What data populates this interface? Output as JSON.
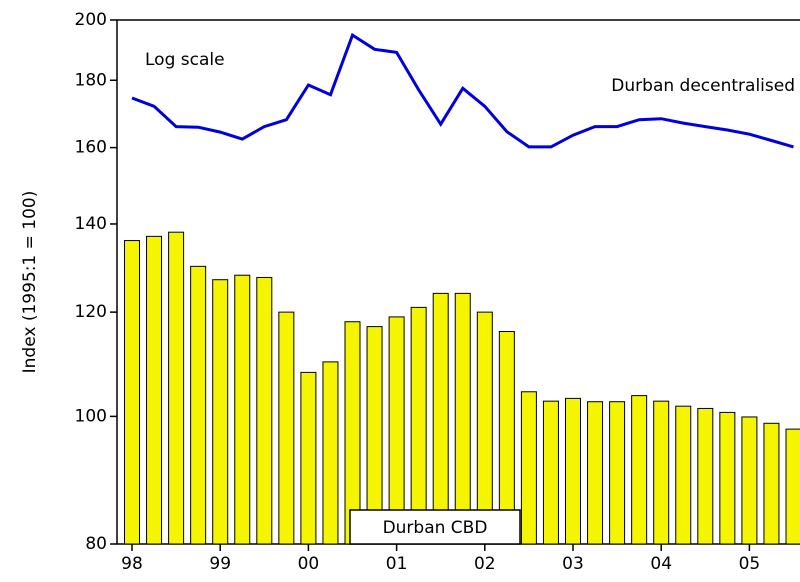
{
  "chart_data": {
    "type": "bar",
    "y_label": "Index (1995:1 = 100)",
    "yscale": "log",
    "ylim": [
      80,
      200
    ],
    "yticks": [
      80,
      100,
      120,
      140,
      160,
      180,
      200
    ],
    "categories": [
      "98",
      null,
      null,
      null,
      "99",
      null,
      null,
      null,
      "00",
      null,
      null,
      null,
      "01",
      null,
      null,
      null,
      "02",
      null,
      null,
      null,
      "03",
      null,
      null,
      null,
      "04",
      null,
      null,
      null,
      "05",
      null,
      null
    ],
    "annotations": [
      "Log scale"
    ],
    "series": [
      {
        "name": "Durban CBD",
        "type": "bar",
        "color": "#f5f500",
        "values": [
          136,
          137,
          138,
          130,
          127,
          128,
          127.5,
          120,
          108,
          110,
          118,
          117,
          119,
          121,
          124,
          124,
          120,
          116,
          104.4,
          102.7,
          103.2,
          102.6,
          102.6,
          103.7,
          102.7,
          101.8,
          101.4,
          100.7,
          99.9,
          98.8,
          97.8
        ]
      },
      {
        "name": "Durban decentralised",
        "type": "line",
        "color": "#0000dd",
        "values": [
          174.5,
          172,
          166,
          165.8,
          164.4,
          162.4,
          166,
          168,
          178.5,
          175.5,
          194.8,
          190,
          189,
          177,
          166.7,
          177.5,
          172,
          164.5,
          160.2,
          160.2,
          163.5,
          166,
          166,
          168,
          168.3,
          167,
          166,
          165,
          163.8,
          162,
          160.2
        ]
      }
    ]
  }
}
